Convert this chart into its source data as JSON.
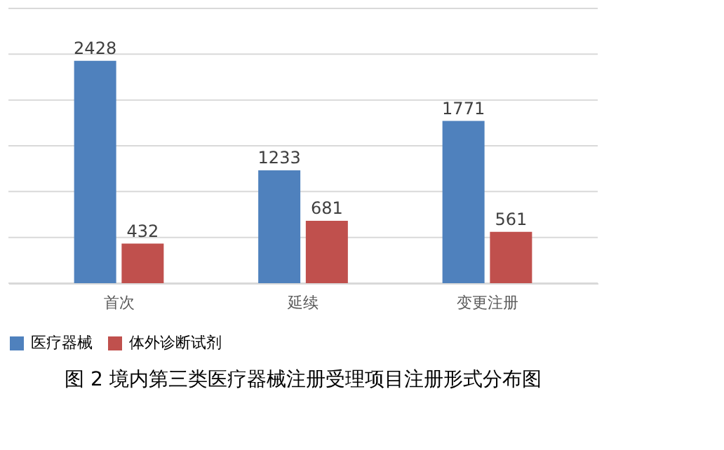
{
  "chart_data": {
    "type": "bar",
    "title": "图 2  境内第三类医疗器械注册受理项目注册形式分布图",
    "categories": [
      "首次",
      "延续",
      "变更注册"
    ],
    "series": [
      {
        "name": "医疗器械",
        "color": "#4f81bd",
        "values": [
          2428,
          1233,
          1771
        ]
      },
      {
        "name": "体外诊断试剂",
        "color": "#c0504d",
        "values": [
          432,
          681,
          561
        ]
      }
    ],
    "ylim": [
      0,
      3000
    ],
    "yticks": [
      {
        "value": 0,
        "label": null
      },
      {
        "value": 500,
        "label": null
      },
      {
        "value": 1000,
        "label": null
      },
      {
        "value": 1500,
        "label": null
      },
      {
        "value": 2000,
        "label": null
      },
      {
        "value": 2500,
        "label": null
      },
      {
        "value": 3000,
        "label": null
      }
    ],
    "grid": "y",
    "legend": "bottom",
    "data_labels": true,
    "tick_labels": "x"
  }
}
